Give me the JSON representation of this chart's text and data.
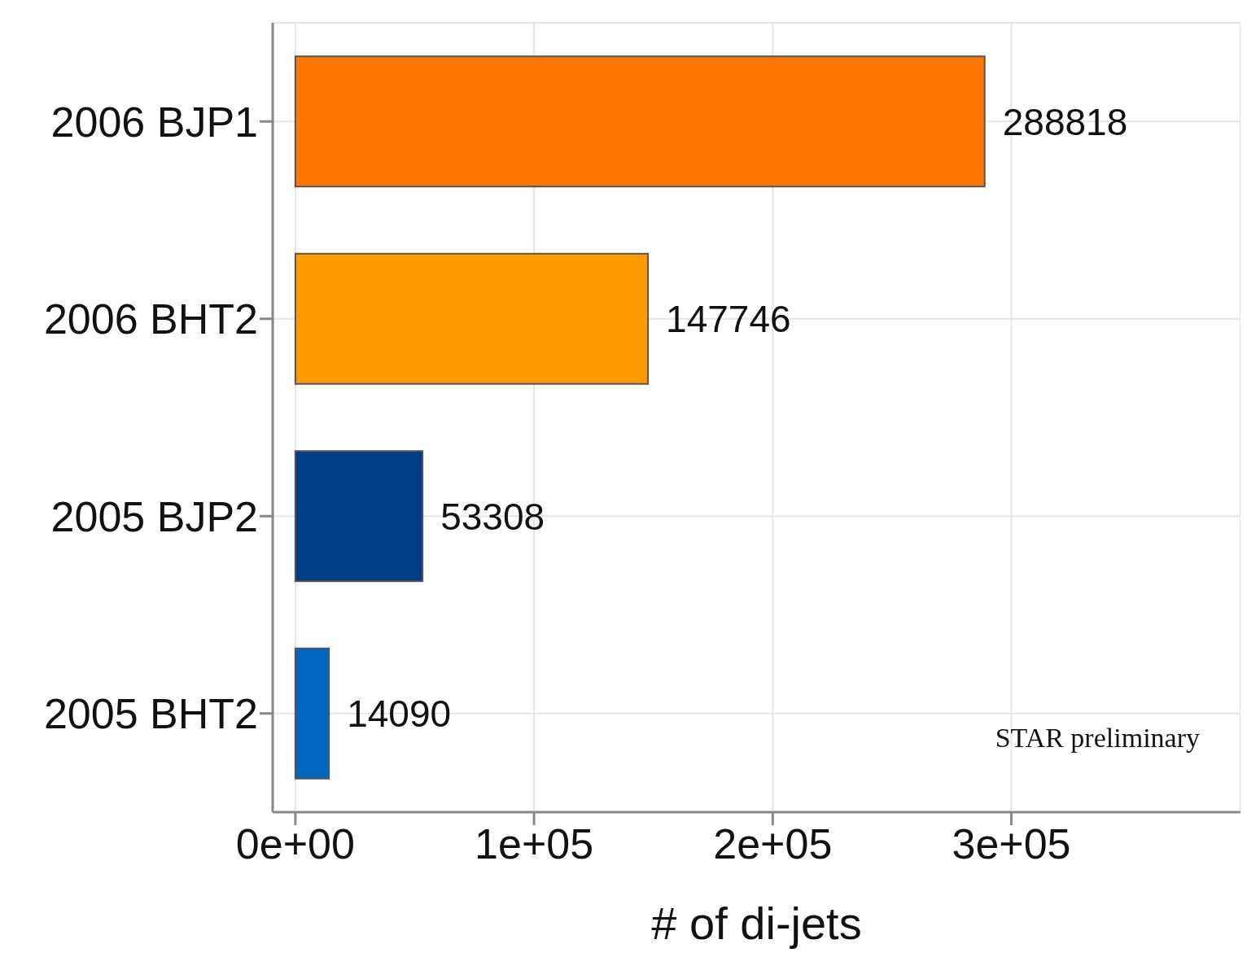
{
  "chart_data": {
    "type": "bar",
    "orientation": "horizontal",
    "xlabel": "# of di-jets",
    "categories": [
      "2006 BJP1",
      "2006 BHT2",
      "2005 BJP2",
      "2005 BHT2"
    ],
    "values": [
      288818,
      147746,
      53308,
      14090
    ],
    "colors": [
      "#ff7700",
      "#ff9900",
      "#003d87",
      "#0066c0"
    ],
    "data_labels": true,
    "xlim": [
      -9500,
      396000
    ],
    "xticks": [
      {
        "value": 0,
        "label": "0e+00"
      },
      {
        "value": 100000,
        "label": "1e+05"
      },
      {
        "value": 200000,
        "label": "2e+05"
      },
      {
        "value": 300000,
        "label": "3e+05"
      }
    ],
    "grid": true,
    "annotations": [
      "STAR preliminary"
    ]
  }
}
